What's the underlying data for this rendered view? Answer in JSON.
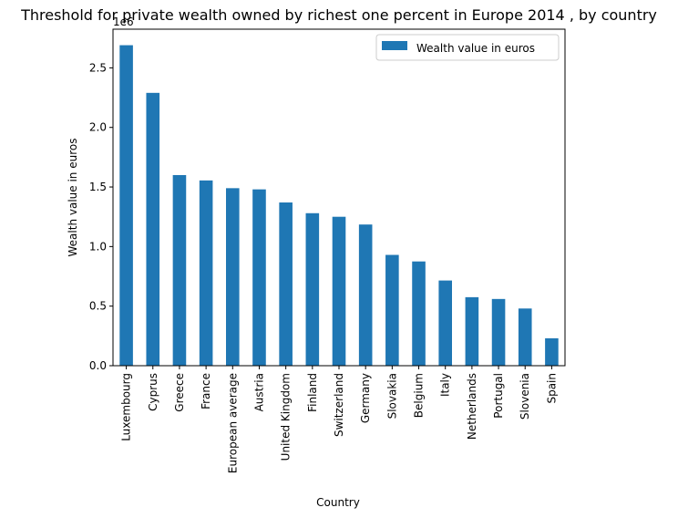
{
  "chart_data": {
    "type": "bar",
    "title": "Threshold for private wealth owned by richest one percent in Europe 2014 , by country",
    "xlabel": "Country",
    "ylabel": "Wealth value in euros",
    "offset_label": "1e6",
    "categories": [
      "Luxembourg",
      "Cyprus",
      "Greece",
      "France",
      "European average",
      "Austria",
      "United Kingdom",
      "Finland",
      "Switzerland",
      "Germany",
      "Slovakia",
      "Belgium",
      "Italy",
      "Netherlands",
      "Portugal",
      "Slovenia",
      "Spain"
    ],
    "series": [
      {
        "name": "Wealth value in euros",
        "values": [
          2690000,
          2290000,
          1600000,
          1555000,
          1490000,
          1480000,
          1370000,
          1280000,
          1250000,
          1185000,
          930000,
          875000,
          715000,
          575000,
          560000,
          480000,
          230000
        ]
      }
    ],
    "yticks": [
      0.0,
      0.5,
      1.0,
      1.5,
      2.0,
      2.5
    ],
    "yscale_factor": 1000000,
    "ylim": [
      0,
      2824500
    ],
    "grid": false,
    "legend_position": "upper right",
    "bar_color": "#1f77b4"
  }
}
